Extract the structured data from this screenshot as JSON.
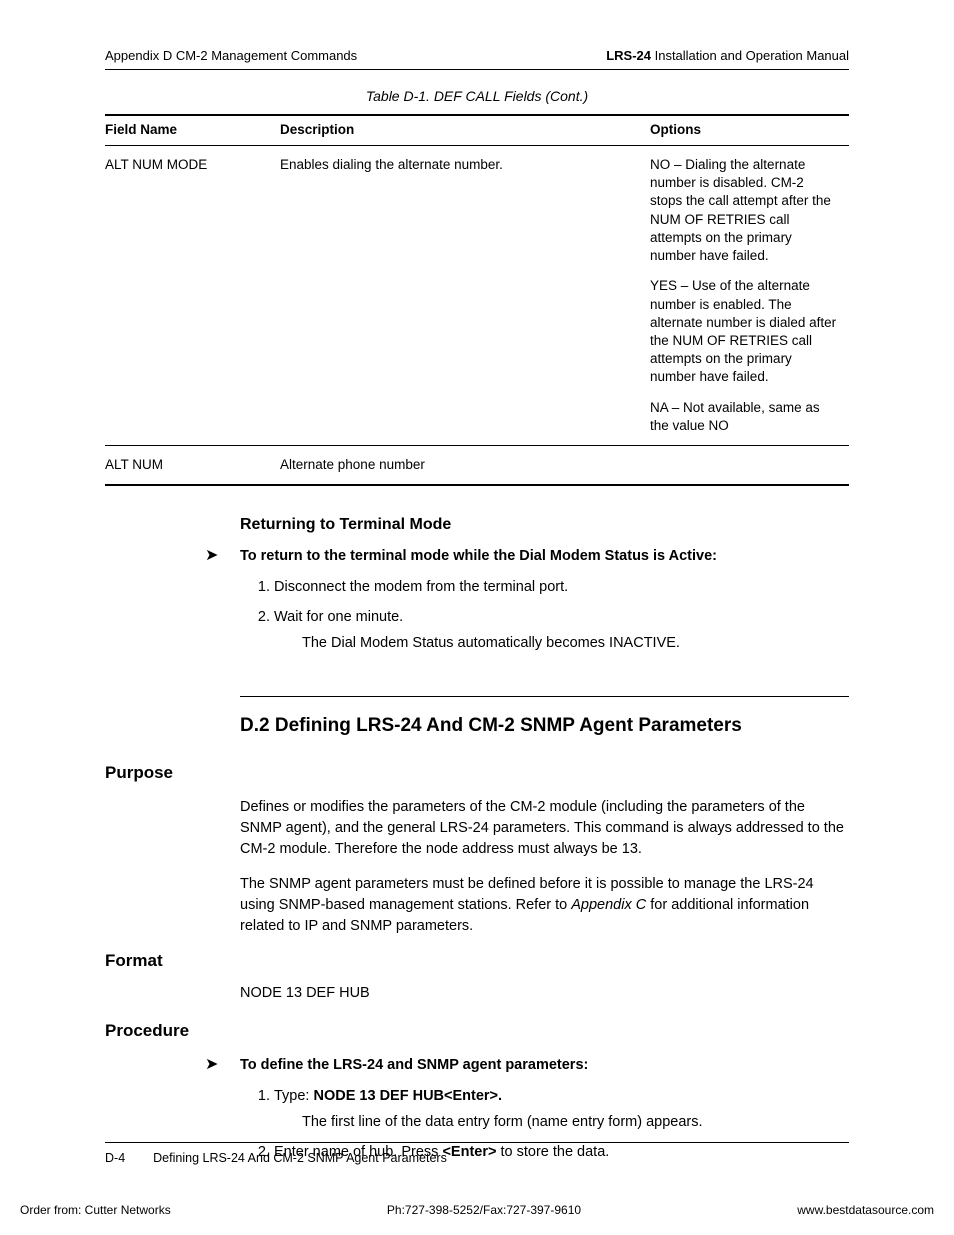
{
  "header": {
    "left": "Appendix D  CM-2 Management Commands",
    "right_bold": "LRS-24",
    "right_rest": " Installation and Operation Manual"
  },
  "table": {
    "caption": "Table D-1.  DEF CALL Fields (Cont.)",
    "columns": [
      "Field Name",
      "Description",
      "Options"
    ],
    "rows": [
      {
        "field": "ALT NUM MODE",
        "desc": "Enables dialing the alternate number.",
        "options": [
          "NO – Dialing the alternate number is disabled. CM-2 stops the call attempt after the NUM OF RETRIES call attempts on the primary number have failed.",
          "YES – Use of the alternate number is enabled. The alternate number is dialed after the NUM OF RETRIES call attempts on the primary number have failed.",
          "NA – Not available, same as the value NO"
        ]
      },
      {
        "field": "ALT NUM",
        "desc": "Alternate phone number",
        "options": []
      }
    ]
  },
  "returning": {
    "heading": "Returning to Terminal Mode",
    "lead": "To return to the terminal mode while the Dial Modem Status is Active:",
    "steps": [
      {
        "text": "Disconnect the modem from the terminal port."
      },
      {
        "text": "Wait for one minute.",
        "sub": "The Dial Modem Status automatically becomes INACTIVE."
      }
    ]
  },
  "section": {
    "title": "D.2  Defining LRS-24 And CM-2 SNMP Agent Parameters",
    "purpose_h": "Purpose",
    "purpose_p1": "Defines or modifies the parameters of the CM-2 module (including the parameters of the SNMP agent), and the general LRS-24 parameters. This command is always addressed to the CM-2 module. Therefore the node address must always be 13.",
    "purpose_p2a": "The SNMP agent parameters must be defined before it is possible to manage the LRS-24 using SNMP-based management stations. Refer to ",
    "purpose_p2_ital": "Appendix C",
    "purpose_p2b": " for additional information related to IP and SNMP parameters.",
    "format_h": "Format",
    "format_line": "NODE 13 DEF HUB",
    "procedure_h": "Procedure",
    "procedure_lead": "To define the LRS-24 and SNMP agent parameters:",
    "procedure_steps": [
      {
        "pre": "Type: ",
        "bold": "NODE 13 DEF HUB<Enter>.",
        "sub": "The first line of the data entry form (name entry form) appears."
      },
      {
        "pre": "Enter name of hub. Press ",
        "bold": "<Enter>",
        "post": " to store the data."
      }
    ]
  },
  "footer": {
    "page": "D-4",
    "title": "Defining LRS-24 And CM-2 SNMP Agent Parameters",
    "order": "Order from: Cutter Networks",
    "phone": "Ph:727-398-5252/Fax:727-397-9610",
    "url": "www.bestdatasource.com"
  }
}
